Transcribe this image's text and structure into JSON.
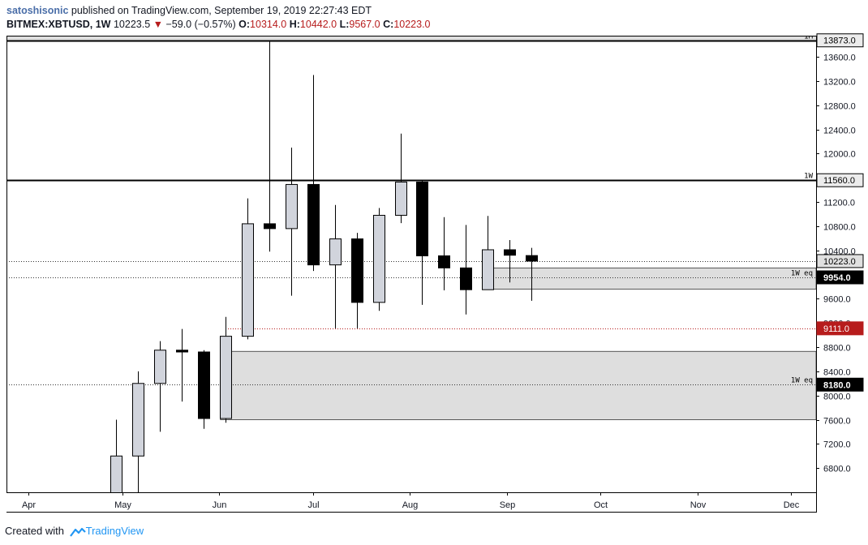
{
  "header": {
    "author": "satoshisonic",
    "published_text": "published on TradingView.com, September 19, 2019 22:27:43 EDT",
    "symbol": "BITMEX:XBTUSD, 1W",
    "last": "10223.5",
    "change": "−59.0 (−0.57%)",
    "o_label": "O:",
    "o_value": "10314.0",
    "h_label": "H:",
    "h_value": "10442.0",
    "l_label": "L:",
    "l_value": "9567.0",
    "c_label": "C:",
    "c_value": "10223.0"
  },
  "footer": {
    "created_with": "Created with",
    "brand": "TradingView"
  },
  "colors": {
    "up_fill": "#d1d4dc",
    "down_fill": "#000000",
    "zone_fill": "#dedede",
    "price_red": "#b71c1c",
    "brand": "#2196f3"
  },
  "chart_data": {
    "type": "candlestick",
    "interval": "1W",
    "x_range": [
      "2019-03-25",
      "2019-12-09"
    ],
    "y_range": [
      6400,
      13950
    ],
    "x_ticks": [
      {
        "date": "2019-04-01",
        "label": "Apr"
      },
      {
        "date": "2019-05-01",
        "label": "May"
      },
      {
        "date": "2019-06-01",
        "label": "Jun"
      },
      {
        "date": "2019-07-01",
        "label": "Jul"
      },
      {
        "date": "2019-08-01",
        "label": "Aug"
      },
      {
        "date": "2019-09-01",
        "label": "Sep"
      },
      {
        "date": "2019-10-01",
        "label": "Oct"
      },
      {
        "date": "2019-11-01",
        "label": "Nov"
      },
      {
        "date": "2019-12-01",
        "label": "Dec"
      }
    ],
    "y_ticks": [
      6800,
      7200,
      7600,
      8000,
      8400,
      8800,
      9200,
      9600,
      10000,
      10400,
      10800,
      11200,
      11600,
      12000,
      12400,
      12800,
      13200,
      13600
    ],
    "y_tick_labels": [
      "6800.0",
      "7200.0",
      "7600.0",
      "8000.0",
      "8400.0",
      "8800.0",
      "9200.0",
      "9600.0",
      "10000.0",
      "10400.0",
      "10800.0",
      "11200.0",
      "11600.0",
      "12000.0",
      "12400.0",
      "12800.0",
      "13200.0",
      "13600.0"
    ],
    "candles": [
      {
        "date": "2019-04-29",
        "o": 5300,
        "h": 7600,
        "l": 5200,
        "c": 7000
      },
      {
        "date": "2019-05-06",
        "o": 7000,
        "h": 8400,
        "l": 6400,
        "c": 8200
      },
      {
        "date": "2019-05-13",
        "o": 8200,
        "h": 8900,
        "l": 7400,
        "c": 8750
      },
      {
        "date": "2019-05-20",
        "o": 8750,
        "h": 9100,
        "l": 7900,
        "c": 8720
      },
      {
        "date": "2019-05-27",
        "o": 8720,
        "h": 8750,
        "l": 7450,
        "c": 7620
      },
      {
        "date": "2019-06-03",
        "o": 7620,
        "h": 9300,
        "l": 7550,
        "c": 8980
      },
      {
        "date": "2019-06-10",
        "o": 8980,
        "h": 11260,
        "l": 8930,
        "c": 10840
      },
      {
        "date": "2019-06-17",
        "o": 10840,
        "h": 13873,
        "l": 10380,
        "c": 10760
      },
      {
        "date": "2019-06-24",
        "o": 10760,
        "h": 12100,
        "l": 9650,
        "c": 11490
      },
      {
        "date": "2019-07-01",
        "o": 11490,
        "h": 13300,
        "l": 10060,
        "c": 10160
      },
      {
        "date": "2019-07-08",
        "o": 10160,
        "h": 11150,
        "l": 9111,
        "c": 10590
      },
      {
        "date": "2019-07-15",
        "o": 10590,
        "h": 10690,
        "l": 9111,
        "c": 9540
      },
      {
        "date": "2019-07-22",
        "o": 9540,
        "h": 11100,
        "l": 9400,
        "c": 10980
      },
      {
        "date": "2019-07-29",
        "o": 10980,
        "h": 12330,
        "l": 10850,
        "c": 11530
      },
      {
        "date": "2019-08-05",
        "o": 11530,
        "h": 11560,
        "l": 9500,
        "c": 10310
      },
      {
        "date": "2019-08-12",
        "o": 10310,
        "h": 10950,
        "l": 9740,
        "c": 10110
      },
      {
        "date": "2019-08-19",
        "o": 10110,
        "h": 10820,
        "l": 9340,
        "c": 9750
      },
      {
        "date": "2019-08-26",
        "o": 9750,
        "h": 10970,
        "l": 9760,
        "c": 10410
      },
      {
        "date": "2019-09-02",
        "o": 10410,
        "h": 10570,
        "l": 9870,
        "c": 10320
      },
      {
        "date": "2019-09-09",
        "o": 10314,
        "h": 10442,
        "l": 9567,
        "c": 10223
      }
    ],
    "levels": [
      {
        "price": 13873,
        "label": "13873.0",
        "tag": "1M",
        "style": "solid-thick",
        "box": "dark"
      },
      {
        "price": 11560,
        "label": "11560.0",
        "tag": "1W",
        "style": "solid-thick",
        "box": "dark"
      },
      {
        "price": 10223,
        "label": "10223.0",
        "tag": "",
        "style": "dotted",
        "box": "gray"
      },
      {
        "price": 9954,
        "label": "9954.0",
        "tag": "1W eq",
        "style": "dotted",
        "box": "black"
      },
      {
        "price": 9111,
        "label": "9111.0",
        "tag": "",
        "style": "dotted-red",
        "box": "red"
      },
      {
        "price": 8180,
        "label": "8180.0",
        "tag": "1W eq",
        "style": "dotted",
        "box": "black"
      }
    ],
    "zones": [
      {
        "from_date": "2019-08-26",
        "low": 9760,
        "high": 10110
      },
      {
        "from_date": "2019-06-03",
        "low": 7600,
        "high": 8730
      }
    ],
    "top_band": {
      "low": 13873,
      "high": 13950
    }
  }
}
